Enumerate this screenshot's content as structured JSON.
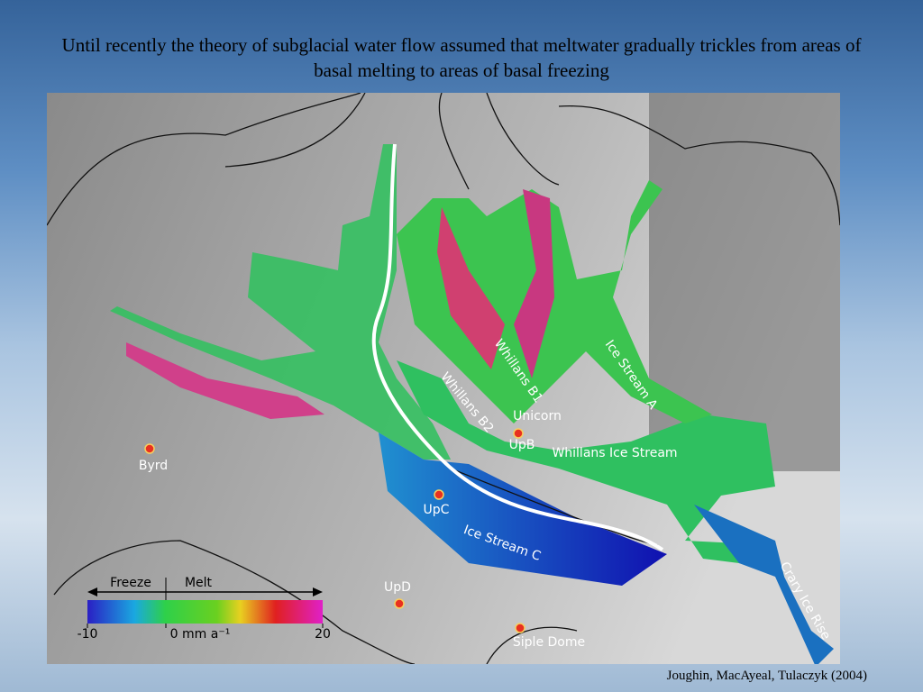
{
  "title": "Until recently the theory of subglacial water flow assumed that meltwater gradually trickles from areas of basal melting to areas of basal freezing",
  "map": {
    "labels": [
      "Whillans B1",
      "Whillans B2",
      "Whillans Ice Stream",
      "Ice Stream A",
      "Ice Stream C",
      "Crary Ice Rise",
      "Unicorn"
    ],
    "sites": [
      "Byrd",
      "UpC",
      "UpD",
      "UpB",
      "Siple Dome"
    ]
  },
  "legend": {
    "left": "Freeze",
    "right": "Melt",
    "ticks": [
      -10,
      {
        "value": 0,
        "label": "0 mm a⁻¹"
      },
      20
    ]
  },
  "citation": "Joughin, MacAyeal, Tulaczyk (2004)"
}
